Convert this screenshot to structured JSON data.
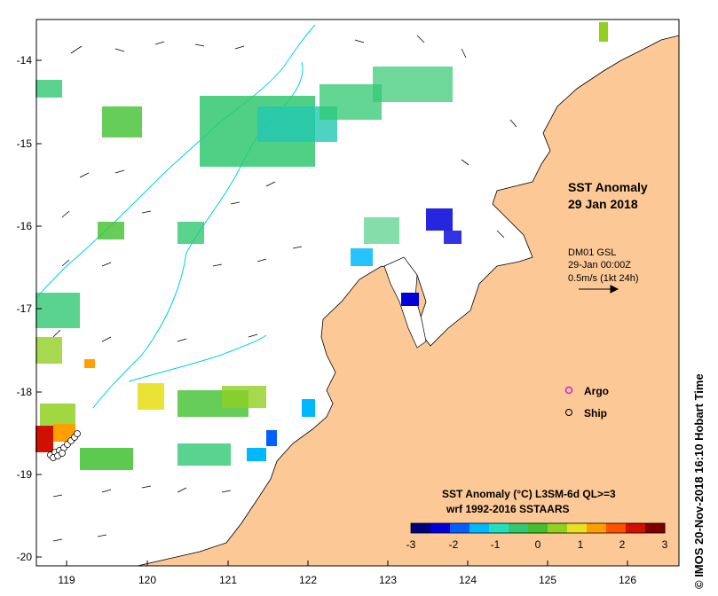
{
  "map": {
    "title_line1": "SST Anomaly",
    "title_line2": "29 Jan 2018",
    "current_info": {
      "model": "DM01 GSL",
      "time": "29-Jan 00:00Z",
      "scale": "0.5m/s (1kt 24h)"
    },
    "legend": {
      "argo_label": "Argo",
      "ship_label": "Ship",
      "argo_color": "#d020d0"
    },
    "colorbar": {
      "title_line1": "SST Anomaly (°C) L3SM-6d QL>=3",
      "title_line2": "wrf 1992-2016 SSTAARS",
      "tick_labels": [
        "-3",
        "-2",
        "-1",
        "0",
        "1",
        "2",
        "3"
      ],
      "colors": [
        "#00007f",
        "#0000d8",
        "#0060ff",
        "#00b8ff",
        "#20e0c0",
        "#30c870",
        "#40c030",
        "#90d020",
        "#e8e020",
        "#ffa000",
        "#ff5000",
        "#d01000",
        "#800000"
      ]
    },
    "credit": "© IMOS 20-Nov-2018 16:10 Hobart Time",
    "axes": {
      "x_tick_labels": [
        "119",
        "120",
        "121",
        "122",
        "123",
        "124",
        "125",
        "126"
      ],
      "y_tick_labels": [
        "-14",
        "-15",
        "-16",
        "-17",
        "-18",
        "-19",
        "-20"
      ]
    },
    "colors": {
      "land": "#fbc896",
      "ocean": "#ffffff",
      "isobath": "#00d0e0"
    }
  }
}
